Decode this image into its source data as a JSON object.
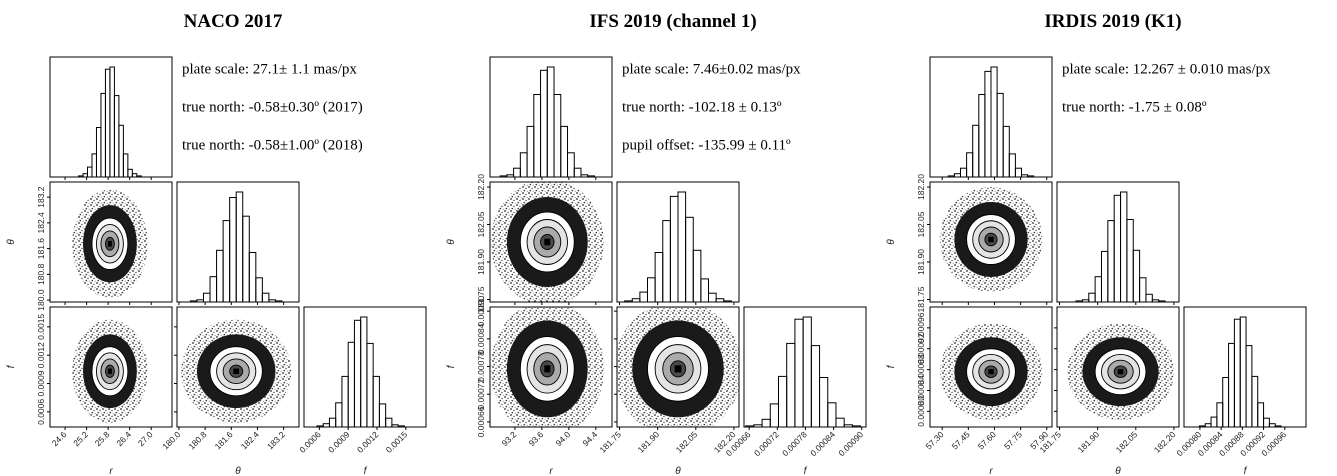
{
  "chart_data": [
    {
      "type": "corner",
      "title": "NACO 2017",
      "annotations": [
        "plate scale: 27.1± 1.1 mas/px",
        "true north: -0.58±0.30º (2017)",
        "true north: -0.58±1.00º (2018)"
      ],
      "parameters": [
        {
          "label": "r",
          "lim": [
            24.18,
            27.58
          ],
          "ticks": [
            24.6,
            25.2,
            25.8,
            26.4,
            {
              "value": 27,
              "label": "27.0"
            }
          ],
          "center": 25.85,
          "sigma": 0.25,
          "bins": [
            24.975,
            25.1,
            25.225,
            25.35,
            25.475,
            25.6,
            25.725,
            25.85,
            25.975,
            26.1,
            26.225,
            26.35,
            26.475,
            26.6,
            26.725
          ],
          "counts": [
            1,
            3,
            9,
            21,
            45,
            76,
            98,
            100,
            74,
            47,
            21,
            7,
            3,
            1
          ]
        },
        {
          "label": "θ",
          "lim": [
            179.94,
            183.67
          ],
          "ticks": [
            {
              "value": 180,
              "label": "180.0"
            },
            180.8,
            181.6,
            182.4,
            183.2
          ],
          "center": 181.75,
          "sigma": 0.4,
          "bins": [
            180.35,
            180.55,
            180.75,
            180.95,
            181.15,
            181.35,
            181.55,
            181.75,
            181.95,
            182.15,
            182.35,
            182.55,
            182.75,
            182.95,
            183.15
          ],
          "counts": [
            1,
            2,
            8,
            23,
            47,
            74,
            95,
            100,
            78,
            45,
            22,
            8,
            2,
            1
          ]
        },
        {
          "label": "f",
          "lim": [
            0.00044,
            0.00171
          ],
          "ticks": [
            0.0006,
            0.0009,
            0.0012,
            0.0015
          ],
          "center": 0.00103,
          "sigma": 0.00013,
          "bins": [
            0.000575,
            0.00064,
            0.000705,
            0.00077,
            0.000835,
            0.0009,
            0.000965,
            0.00103,
            0.001095,
            0.00116,
            0.001225,
            0.00129,
            0.001355,
            0.00142,
            0.001485
          ],
          "counts": [
            1,
            3,
            8,
            22,
            46,
            77,
            97,
            100,
            76,
            46,
            21,
            8,
            2,
            1
          ]
        }
      ]
    },
    {
      "type": "corner",
      "title": "IFS 2019 (channel 1)",
      "annotations": [
        "plate scale: 7.46±0.02 mas/px",
        "true north: -102.18 ± 0.13º",
        "pupil offset: -135.99 ± 0.11º"
      ],
      "parameters": [
        {
          "label": "r",
          "lim": [
            92.83,
            94.64
          ],
          "ticks": [
            93.2,
            93.6,
            {
              "value": 94,
              "label": "94.0"
            },
            94.4
          ],
          "center": 93.68,
          "sigma": 0.2,
          "bins": [
            92.98,
            93.08,
            93.18,
            93.28,
            93.38,
            93.48,
            93.58,
            93.68,
            93.78,
            93.88,
            93.98,
            94.08,
            94.18,
            94.28,
            94.38
          ],
          "counts": [
            1,
            2,
            8,
            22,
            46,
            75,
            97,
            100,
            75,
            46,
            22,
            8,
            2,
            1
          ]
        },
        {
          "label": "θ",
          "lim": [
            181.74,
            182.22
          ],
          "ticks": [
            181.75,
            {
              "value": 181.9,
              "label": "181.90"
            },
            182.05,
            {
              "value": 182.2,
              "label": "182.20"
            }
          ],
          "center": 181.98,
          "sigma": 0.06,
          "bins": [
            181.77,
            181.8,
            181.83,
            181.86,
            181.89,
            181.92,
            181.95,
            181.98,
            182.01,
            182.04,
            182.07,
            182.1,
            182.13,
            182.16,
            182.19
          ],
          "counts": [
            1,
            3,
            9,
            22,
            45,
            74,
            96,
            100,
            77,
            47,
            21,
            8,
            3,
            1
          ]
        },
        {
          "label": "f",
          "lim": [
            0.000649,
            0.000909
          ],
          "ticks": [
            0.00066,
            0.00072,
            0.00078,
            0.00084,
            {
              "value": 0.0009,
              "label": "0.00090"
            }
          ],
          "center": 0.000775,
          "sigma": 3.5e-05,
          "bins": [
            0.0006525,
            0.00067,
            0.0006875,
            0.000705,
            0.0007225,
            0.00074,
            0.0007575,
            0.000775,
            0.0007925,
            0.00081,
            0.0008275,
            0.000845,
            0.0008625,
            0.00088,
            0.0008975
          ],
          "counts": [
            1,
            2,
            7,
            21,
            46,
            76,
            98,
            100,
            74,
            45,
            22,
            8,
            2,
            1
          ]
        }
      ]
    },
    {
      "type": "corner",
      "title": "IRDIS 2019 (K1)",
      "annotations": [
        "plate scale: 12.267 ± 0.010 mas/px",
        "true north: -1.75 ± 0.08º"
      ],
      "parameters": [
        {
          "label": "r",
          "lim": [
            57.23,
            57.93
          ],
          "ticks": [
            {
              "value": 57.3,
              "label": "57.30"
            },
            57.45,
            {
              "value": 57.6,
              "label": "57.60"
            },
            57.75,
            {
              "value": 57.9,
              "label": "57.90"
            }
          ],
          "center": 57.58,
          "sigma": 0.07,
          "bins": [
            57.335,
            57.37,
            57.405,
            57.44,
            57.475,
            57.51,
            57.545,
            57.58,
            57.615,
            57.65,
            57.685,
            57.72,
            57.755,
            57.79,
            57.825
          ],
          "counts": [
            1,
            3,
            8,
            22,
            47,
            75,
            96,
            100,
            76,
            46,
            21,
            8,
            2,
            1
          ]
        },
        {
          "label": "θ",
          "lim": [
            181.74,
            182.22
          ],
          "ticks": [
            181.75,
            {
              "value": 181.9,
              "label": "181.90"
            },
            182.05,
            {
              "value": 182.2,
              "label": "182.20"
            }
          ],
          "center": 181.99,
          "sigma": 0.05,
          "bins": [
            181.815,
            181.84,
            181.865,
            181.89,
            181.915,
            181.94,
            181.965,
            181.99,
            182.015,
            182.04,
            182.065,
            182.09,
            182.115,
            182.14,
            182.165
          ],
          "counts": [
            1,
            2,
            8,
            23,
            46,
            74,
            97,
            100,
            75,
            47,
            22,
            7,
            2,
            1
          ]
        },
        {
          "label": "f",
          "lim": [
            0.00077,
            0.001
          ],
          "ticks": [
            {
              "value": 0.0008,
              "label": "0.00080"
            },
            0.00084,
            0.00088,
            0.00092,
            0.00096
          ],
          "center": 0.000876,
          "sigma": 2.2e-05,
          "bins": [
            0.000799,
            0.00081,
            0.000821,
            0.000832,
            0.000843,
            0.000854,
            0.000865,
            0.000876,
            0.000887,
            0.000898,
            0.000909,
            0.00092,
            0.000931,
            0.000942,
            0.000953
          ],
          "counts": [
            1,
            3,
            9,
            22,
            45,
            76,
            98,
            100,
            74,
            46,
            22,
            8,
            3,
            1
          ]
        }
      ]
    }
  ]
}
